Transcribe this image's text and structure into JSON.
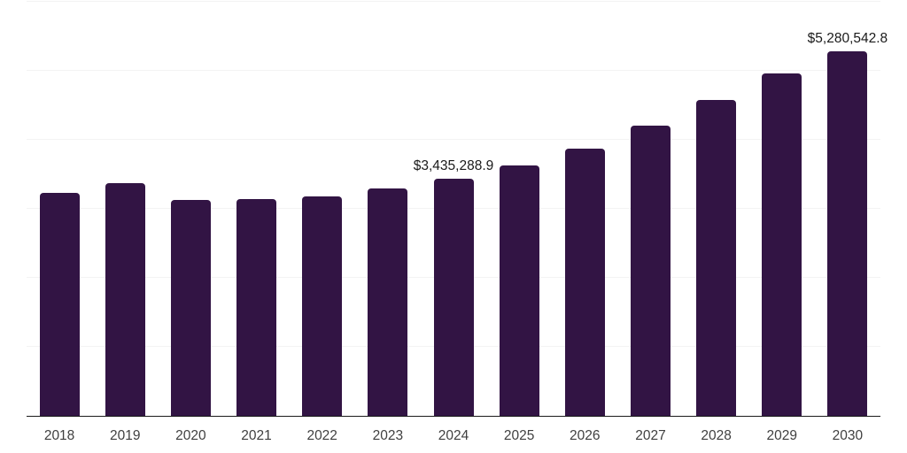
{
  "chart_data": {
    "type": "bar",
    "title": "",
    "xlabel": "",
    "ylabel": "",
    "categories": [
      "2018",
      "2019",
      "2020",
      "2021",
      "2022",
      "2023",
      "2024",
      "2025",
      "2026",
      "2027",
      "2028",
      "2029",
      "2030"
    ],
    "values": [
      3230000,
      3370000,
      3130000,
      3140000,
      3180000,
      3295000,
      3435288.9,
      3630000,
      3870000,
      4205000,
      4577000,
      4962000,
      5280542.8
    ],
    "point_labels": {
      "2024": "$3,435,288.9",
      "2030": "$5,280,542.8"
    },
    "ylim": [
      0,
      6000000
    ],
    "gridline_step": 1000000,
    "grid": "horizontal",
    "y_tick_labels_shown": false,
    "legend_position": "none",
    "colors": {
      "bar": "#321444",
      "gridline": "#f3f3f3",
      "axis_line": "#1a1a1a",
      "tick_label": "#404040",
      "data_label": "#1a1a1a",
      "background": "#ffffff"
    }
  }
}
